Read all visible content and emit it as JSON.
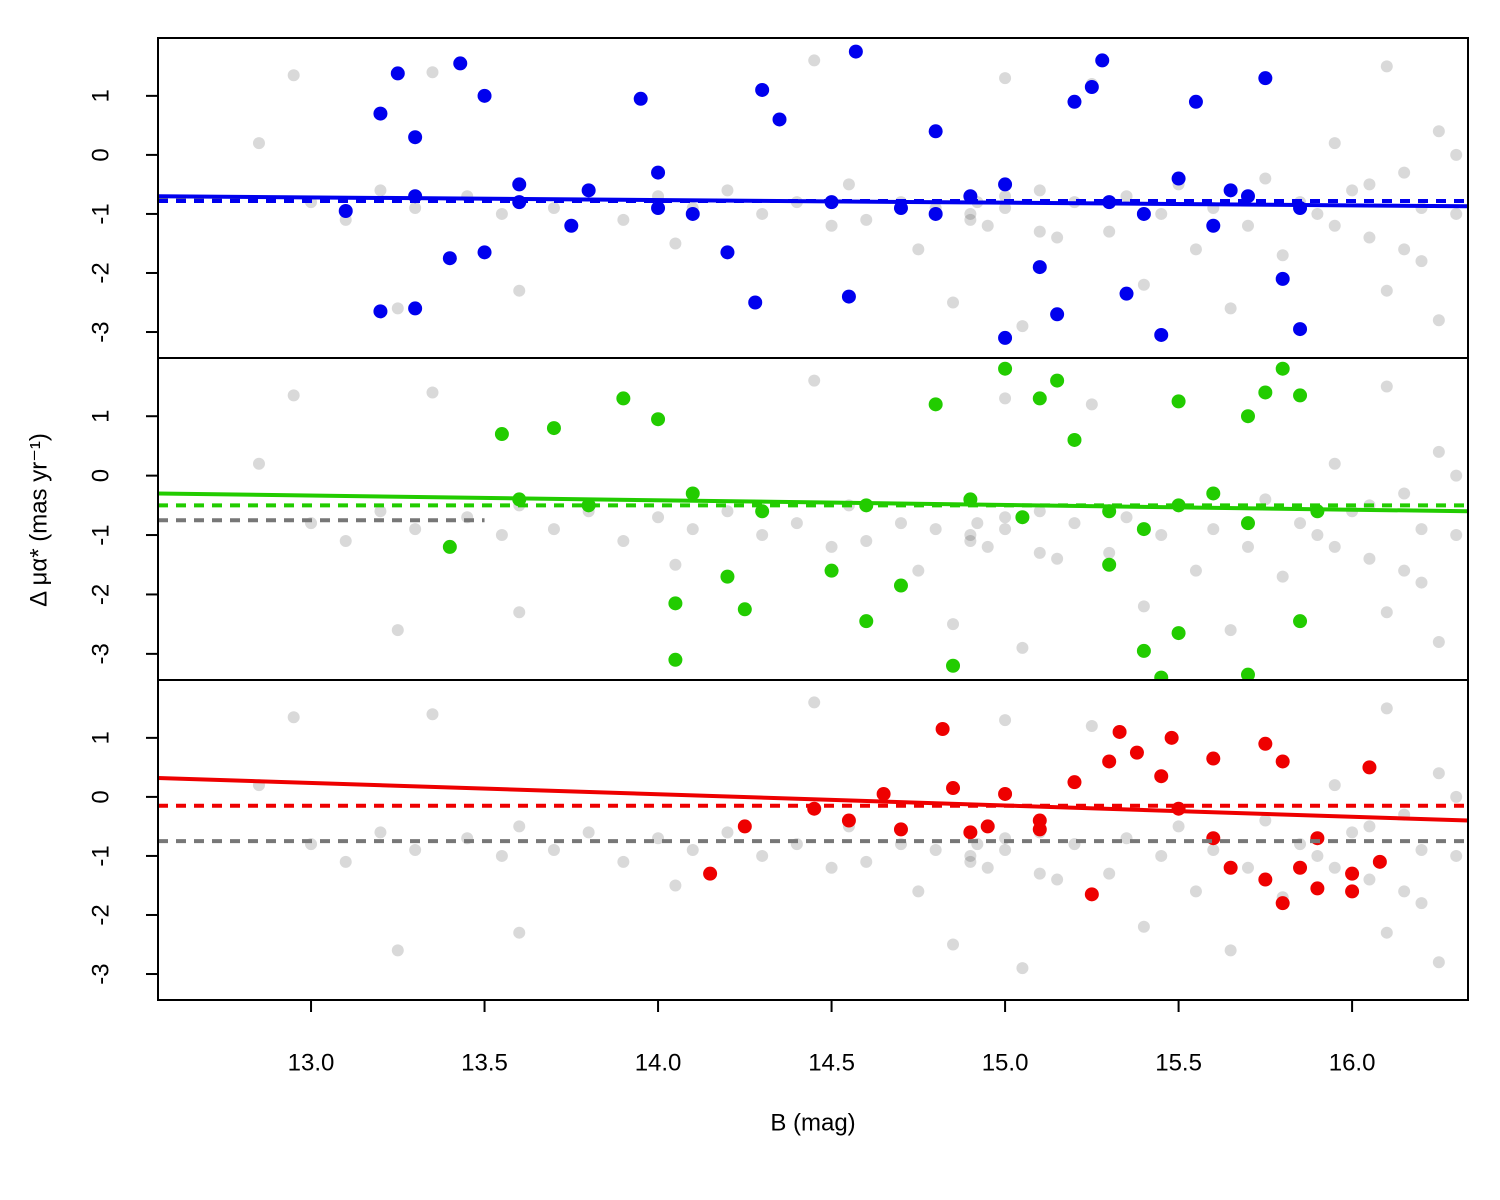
{
  "chart_data": {
    "type": "scatter",
    "xlabel": "B (mag)",
    "ylabel": "Δ μα* (mas yr⁻¹)",
    "xlim": [
      12.559,
      16.334
    ],
    "xticks": [
      {
        "value": 13.0,
        "label": "13.0"
      },
      {
        "value": 13.5,
        "label": "13.5"
      },
      {
        "value": 14.0,
        "label": "14.0"
      },
      {
        "value": 14.5,
        "label": "14.5"
      },
      {
        "value": 15.0,
        "label": "15.0"
      },
      {
        "value": 15.5,
        "label": "15.5"
      },
      {
        "value": 16.0,
        "label": "16.0"
      }
    ],
    "ylim": [
      -3.44,
      1.98
    ],
    "yticks": [
      -3,
      -2,
      -1,
      0,
      1
    ],
    "background": {
      "color": "#000000",
      "x": [
        12.85,
        12.95,
        13.0,
        13.1,
        13.2,
        13.3,
        13.35,
        13.45,
        13.55,
        13.6,
        13.7,
        13.8,
        13.9,
        14.0,
        14.05,
        14.1,
        14.2,
        14.3,
        14.4,
        14.5,
        14.55,
        14.6,
        14.7,
        14.75,
        14.8,
        14.85,
        14.9,
        14.92,
        14.95,
        15.0,
        15.0,
        15.05,
        15.1,
        15.15,
        15.2,
        15.25,
        15.3,
        15.35,
        15.4,
        15.45,
        15.5,
        15.55,
        15.6,
        15.65,
        15.7,
        15.75,
        15.8,
        15.85,
        15.9,
        15.95,
        16.0,
        16.05,
        16.1,
        16.15,
        16.2,
        16.25,
        16.3,
        16.1,
        16.2,
        16.3,
        15.95,
        16.05,
        16.15,
        16.25,
        14.9,
        15.0,
        15.1,
        13.25,
        13.6,
        14.45
      ],
      "values": [
        0.2,
        1.35,
        -0.8,
        -1.1,
        -0.6,
        -0.9,
        1.4,
        -0.7,
        -1.0,
        -0.5,
        -0.9,
        -0.6,
        -1.1,
        -0.7,
        -1.5,
        -0.9,
        -0.6,
        -1.0,
        -0.8,
        -1.2,
        -0.5,
        -1.1,
        -0.8,
        -1.6,
        -0.9,
        -2.5,
        -1.0,
        -0.8,
        -1.2,
        -0.9,
        1.3,
        -2.9,
        -0.6,
        -1.4,
        -0.8,
        1.2,
        -1.3,
        -0.7,
        -2.2,
        -1.0,
        -0.5,
        -1.6,
        -0.9,
        -2.6,
        -1.2,
        -0.4,
        -1.7,
        -0.8,
        -1.0,
        0.2,
        -0.6,
        -1.4,
        1.5,
        -0.3,
        -1.8,
        0.4,
        -1.0,
        -2.3,
        -0.9,
        0.0,
        -1.2,
        -0.5,
        -1.6,
        -2.8,
        -1.1,
        -0.7,
        -1.3,
        -2.6,
        -2.3,
        1.6
      ]
    },
    "panels": [
      {
        "series": {
          "color": "#0000ee",
          "x": [
            13.1,
            13.2,
            13.2,
            13.25,
            13.3,
            13.3,
            13.4,
            13.43,
            13.5,
            13.5,
            13.6,
            13.75,
            13.8,
            13.95,
            14.0,
            14.1,
            14.2,
            14.3,
            14.35,
            14.28,
            14.5,
            14.57,
            14.55,
            14.7,
            14.8,
            14.9,
            15.0,
            15.1,
            15.15,
            15.2,
            15.25,
            15.28,
            15.3,
            15.35,
            15.45,
            15.5,
            15.55,
            15.6,
            15.7,
            15.75,
            15.8,
            15.85,
            15.85,
            14.0,
            13.6,
            15.0,
            15.4,
            15.65,
            14.8,
            13.3
          ],
          "values": [
            -0.95,
            -2.65,
            0.7,
            1.38,
            -2.6,
            0.3,
            -1.75,
            1.55,
            1.0,
            -1.65,
            -0.5,
            -1.2,
            -0.6,
            0.95,
            -0.3,
            -1.0,
            -1.65,
            1.1,
            0.6,
            -2.5,
            -0.8,
            1.75,
            -2.4,
            -0.9,
            0.4,
            -0.7,
            -3.1,
            -1.9,
            -2.7,
            0.9,
            1.15,
            1.6,
            -0.8,
            -2.35,
            -3.05,
            -0.4,
            0.9,
            -1.2,
            -0.7,
            1.3,
            -2.1,
            -2.95,
            -0.9,
            -0.9,
            -0.8,
            -0.5,
            -1.0,
            -0.6,
            -1.0,
            -0.7
          ]
        },
        "lines": [
          {
            "style": "dotted",
            "color": "#777777",
            "x": [
              12.559,
              13.1
            ],
            "values": [
              -0.75,
              -0.75
            ]
          },
          {
            "style": "dotted",
            "color": "#0000ee",
            "x": [
              12.559,
              16.334
            ],
            "values": [
              -0.78,
              -0.78
            ]
          },
          {
            "style": "solid",
            "color": "#0000ee",
            "x": [
              12.559,
              16.334
            ],
            "values": [
              -0.7,
              -0.87
            ]
          }
        ]
      },
      {
        "series": {
          "color": "#22cc00",
          "x": [
            13.4,
            13.55,
            13.7,
            13.9,
            14.0,
            14.05,
            14.05,
            14.2,
            14.25,
            14.5,
            14.6,
            14.7,
            14.8,
            14.85,
            15.0,
            15.1,
            15.15,
            15.2,
            15.3,
            15.4,
            15.45,
            15.5,
            15.5,
            15.7,
            15.75,
            15.8,
            15.85,
            15.85,
            15.7,
            13.6,
            13.8,
            14.1,
            14.3,
            14.6,
            14.9,
            15.05,
            15.3,
            15.5,
            15.7,
            15.9,
            15.6,
            15.4
          ],
          "values": [
            -1.2,
            0.7,
            0.8,
            1.3,
            0.95,
            -2.15,
            -3.1,
            -1.7,
            -2.25,
            -1.6,
            -2.45,
            -1.85,
            1.2,
            -3.2,
            1.8,
            1.3,
            1.6,
            0.6,
            -1.5,
            -2.95,
            -3.4,
            -2.65,
            1.25,
            1.0,
            1.4,
            1.8,
            1.35,
            -2.45,
            -3.35,
            -0.4,
            -0.5,
            -0.3,
            -0.6,
            -0.5,
            -0.4,
            -0.7,
            -0.6,
            -0.5,
            -0.8,
            -0.6,
            -0.3,
            -0.9
          ]
        },
        "lines": [
          {
            "style": "dotted",
            "color": "#777777",
            "x": [
              12.559,
              13.5
            ],
            "values": [
              -0.75,
              -0.75
            ]
          },
          {
            "style": "dotted",
            "color": "#22cc00",
            "x": [
              12.559,
              16.334
            ],
            "values": [
              -0.5,
              -0.5
            ]
          },
          {
            "style": "solid",
            "color": "#22cc00",
            "x": [
              12.559,
              16.334
            ],
            "values": [
              -0.3,
              -0.6
            ]
          }
        ]
      },
      {
        "series": {
          "color": "#ee0000",
          "x": [
            14.15,
            14.25,
            14.45,
            14.55,
            14.65,
            14.7,
            14.82,
            14.85,
            14.95,
            15.0,
            15.1,
            15.1,
            15.2,
            15.25,
            15.33,
            15.38,
            15.45,
            15.48,
            15.5,
            15.6,
            15.6,
            15.65,
            15.75,
            15.75,
            15.8,
            15.8,
            15.85,
            15.9,
            15.9,
            16.0,
            16.0,
            16.05,
            16.08,
            15.3,
            14.9
          ],
          "values": [
            -1.3,
            -0.5,
            -0.2,
            -0.4,
            0.05,
            -0.55,
            1.15,
            0.15,
            -0.5,
            0.05,
            -0.4,
            -0.55,
            0.25,
            -1.65,
            1.1,
            0.75,
            0.35,
            1.0,
            -0.2,
            0.65,
            -0.7,
            -1.2,
            0.9,
            -1.4,
            0.6,
            -1.8,
            -1.2,
            -0.7,
            -1.55,
            -1.6,
            -1.3,
            0.5,
            -1.1,
            0.6,
            -0.6
          ]
        },
        "lines": [
          {
            "style": "dotted",
            "color": "#777777",
            "x": [
              12.559,
              16.334
            ],
            "values": [
              -0.75,
              -0.75
            ]
          },
          {
            "style": "dotted",
            "color": "#ee0000",
            "x": [
              12.559,
              16.334
            ],
            "values": [
              -0.15,
              -0.15
            ]
          },
          {
            "style": "solid",
            "color": "#ee0000",
            "x": [
              12.559,
              16.334
            ],
            "values": [
              0.32,
              -0.4
            ]
          }
        ]
      }
    ]
  }
}
